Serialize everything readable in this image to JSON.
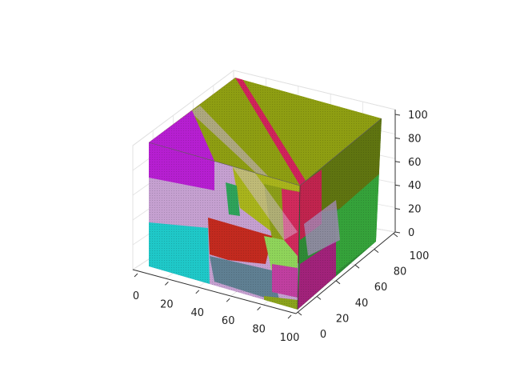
{
  "chart_data": {
    "type": "3d-voxel",
    "title": "",
    "xlabel": "",
    "ylabel": "",
    "zlabel": "",
    "x_ticks": [
      "0",
      "20",
      "40",
      "60",
      "80",
      "100"
    ],
    "y_ticks": [
      "0",
      "20",
      "40",
      "60",
      "80",
      "100"
    ],
    "z_ticks": [
      "0",
      "20",
      "40",
      "60",
      "80",
      "100"
    ],
    "xlim": [
      0,
      100
    ],
    "ylim": [
      0,
      100
    ],
    "zlim": [
      0,
      100
    ],
    "grid": true,
    "colors": {
      "magenta": "#c01fd6",
      "lilac": "#c29bd0",
      "cyan": "#1fc7c7",
      "olive": "#8a9a10",
      "olive_dark": "#5f7410",
      "green": "#3aaa44",
      "crimson": "#d6245a",
      "red": "#c0281e",
      "slate": "#5f7f92",
      "lime": "#8fd45a"
    }
  }
}
